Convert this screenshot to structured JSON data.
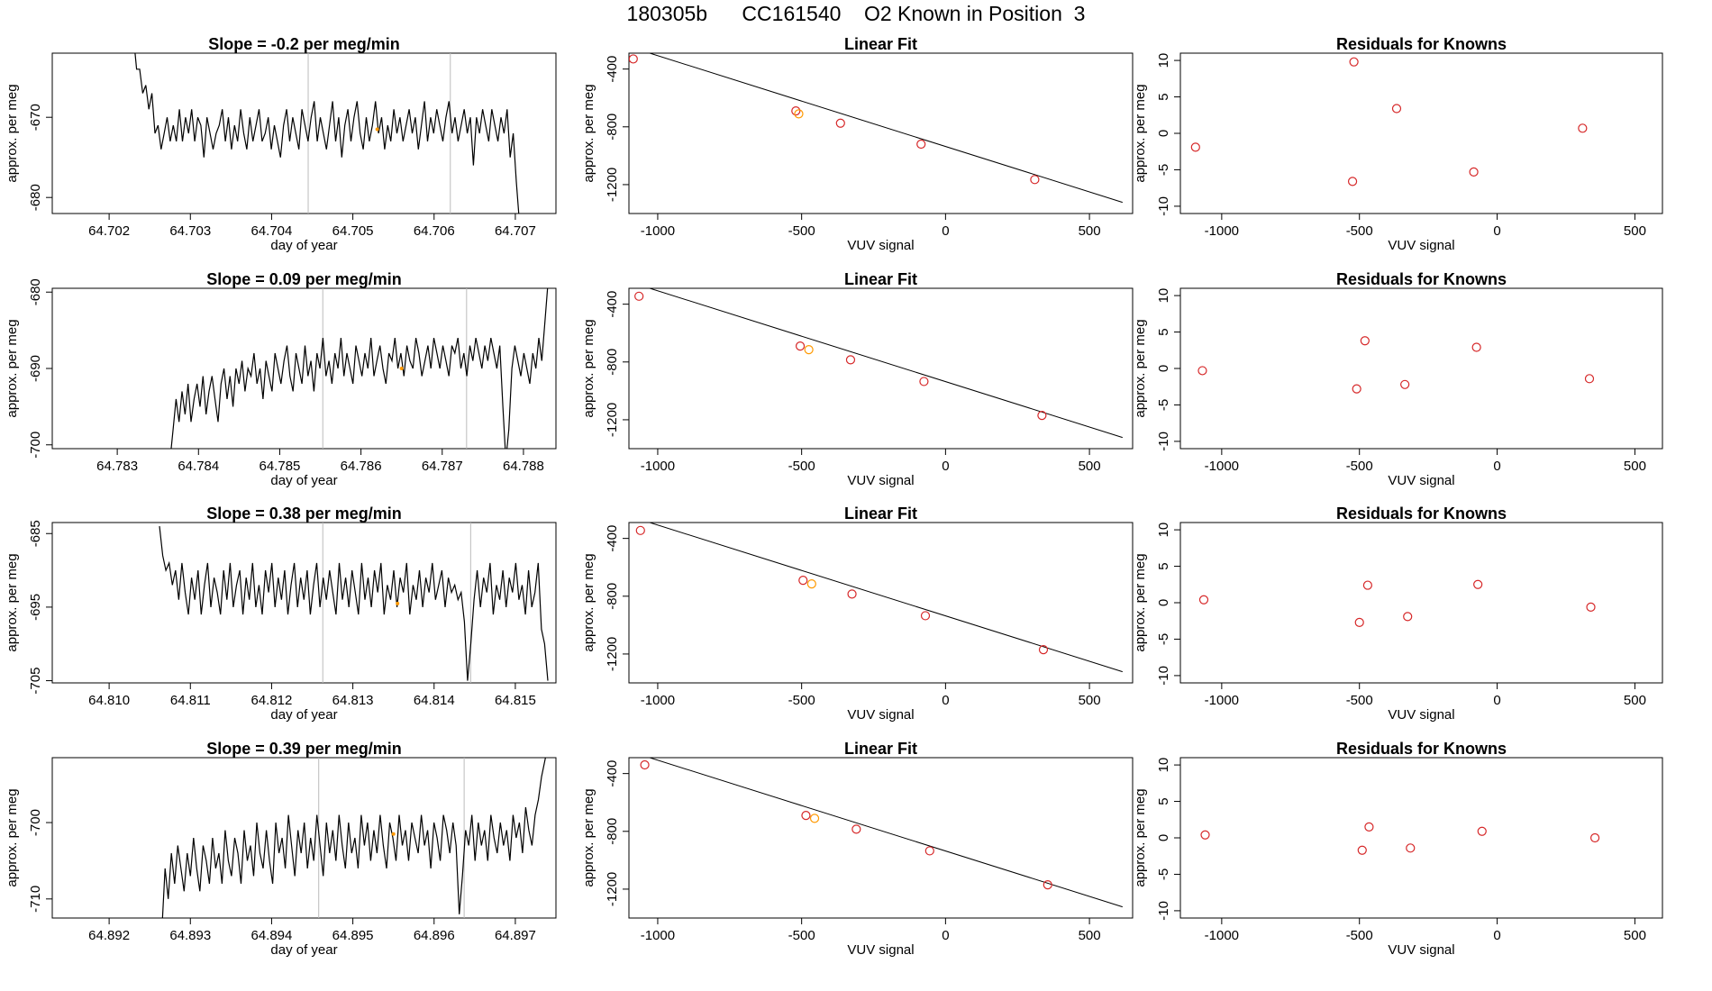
{
  "page_title": "180305b      CC161540    O2 Known in Position  3",
  "colors": {
    "series_line": "#000000",
    "point_red": "#d62728",
    "point_orange": "#ff9900",
    "marker_line": "#bbbbbb",
    "fit_line": "#000000"
  },
  "chart_data": [
    {
      "type": "line",
      "row": 0,
      "title": "Slope =  -0.2  per meg/min",
      "xlabel": "day of year",
      "ylabel": "approx. per meg",
      "xlim": [
        64.7013,
        64.7075
      ],
      "ylim": [
        -682,
        -662
      ],
      "xticks": [
        64.702,
        64.703,
        64.704,
        64.705,
        64.706,
        64.707
      ],
      "yticks": [
        -680,
        -670
      ],
      "vlines": [
        64.70445,
        64.7062
      ],
      "series": {
        "x_start": 64.7023,
        "x_end": 64.70705,
        "y": [
          -660,
          -664,
          -664,
          -667,
          -666,
          -669,
          -667,
          -672,
          -671,
          -674,
          -672,
          -670,
          -673,
          -671,
          -673,
          -669,
          -673,
          -670,
          -672,
          -669,
          -673,
          -670,
          -671,
          -675,
          -670,
          -672,
          -674,
          -672,
          -671,
          -669,
          -673,
          -670,
          -674,
          -671,
          -673,
          -669,
          -672,
          -674,
          -670,
          -673,
          -671,
          -669,
          -673,
          -672,
          -670,
          -674,
          -671,
          -673,
          -675,
          -671,
          -669,
          -673,
          -670,
          -672,
          -674,
          -669,
          -671,
          -673,
          -670,
          -668,
          -673,
          -670,
          -672,
          -674,
          -671,
          -668,
          -673,
          -670,
          -675,
          -671,
          -669,
          -673,
          -670,
          -668,
          -672,
          -674,
          -670,
          -673,
          -671,
          -668,
          -672,
          -670,
          -674,
          -671,
          -673,
          -669,
          -672,
          -670,
          -673,
          -671,
          -669,
          -672,
          -670,
          -674,
          -671,
          -668,
          -673,
          -670,
          -672,
          -669,
          -671,
          -673,
          -670,
          -668,
          -672,
          -670,
          -673,
          -671,
          -669,
          -672,
          -670,
          -676,
          -670,
          -672,
          -669,
          -671,
          -673,
          -669,
          -671,
          -673,
          -670,
          -672,
          -669,
          -675,
          -672,
          -678,
          -683
        ]
      },
      "marker": {
        "x": 64.7053,
        "y": -671.5
      }
    },
    {
      "type": "scatter",
      "row": 0,
      "title": "Linear Fit",
      "xlabel": "VUV signal",
      "ylabel": "approx. per meg",
      "xlim": [
        -1100,
        650
      ],
      "ylim": [
        -1400,
        -290
      ],
      "xticks": [
        -1000,
        -500,
        0,
        500
      ],
      "yticks": [
        -1200,
        -800,
        -400
      ],
      "points": [
        {
          "x": -1085,
          "y": -330
        },
        {
          "x": -520,
          "y": -690
        },
        {
          "x": -510,
          "y": -710
        },
        {
          "x": -365,
          "y": -775
        },
        {
          "x": -85,
          "y": -920
        },
        {
          "x": 310,
          "y": -1165
        }
      ],
      "highlight_index": 2,
      "fit": {
        "slope": -0.6286,
        "intercept": -936
      }
    },
    {
      "type": "scatter",
      "row": 0,
      "title": "Residuals for Knowns",
      "xlabel": "VUV signal",
      "ylabel": "approx. per meg",
      "xlim": [
        -1150,
        600
      ],
      "ylim": [
        -11,
        11
      ],
      "xticks": [
        -1000,
        -500,
        0,
        500
      ],
      "yticks": [
        -10,
        -5,
        0,
        5,
        10
      ],
      "points": [
        {
          "x": -1095,
          "y": -1.9
        },
        {
          "x": -525,
          "y": -6.6
        },
        {
          "x": -520,
          "y": 9.8
        },
        {
          "x": -365,
          "y": 3.4
        },
        {
          "x": -85,
          "y": -5.3
        },
        {
          "x": 310,
          "y": 0.7
        }
      ]
    },
    {
      "type": "line",
      "row": 1,
      "title": "Slope =  0.09  per meg/min",
      "xlabel": "day of year",
      "ylabel": "approx. per meg",
      "xlim": [
        64.7822,
        64.7884
      ],
      "ylim": [
        -700.5,
        -679.5
      ],
      "xticks": [
        64.783,
        64.784,
        64.785,
        64.786,
        64.787,
        64.788
      ],
      "yticks": [
        -700,
        -690,
        -680
      ],
      "vlines": [
        64.78553,
        64.7873
      ],
      "series": {
        "x_start": 64.78365,
        "x_end": 64.7883,
        "y": [
          -702,
          -698,
          -694,
          -697,
          -693,
          -696,
          -692,
          -697,
          -694,
          -692,
          -695,
          -691,
          -696,
          -693,
          -691,
          -694,
          -697,
          -692,
          -690,
          -694,
          -691,
          -695,
          -690,
          -692,
          -689,
          -693,
          -690,
          -691,
          -688,
          -692,
          -690,
          -694,
          -689,
          -691,
          -693,
          -688,
          -690,
          -692,
          -689,
          -687,
          -691,
          -693,
          -688,
          -690,
          -692,
          -687,
          -691,
          -689,
          -693,
          -688,
          -690,
          -686,
          -691,
          -689,
          -692,
          -688,
          -690,
          -686,
          -691,
          -688,
          -690,
          -692,
          -687,
          -689,
          -691,
          -688,
          -690,
          -686,
          -691,
          -689,
          -687,
          -690,
          -692,
          -688,
          -689,
          -686,
          -690,
          -688,
          -691,
          -687,
          -689,
          -690,
          -686,
          -688,
          -691,
          -689,
          -687,
          -690,
          -686,
          -688,
          -690,
          -687,
          -689,
          -691,
          -687,
          -688,
          -686,
          -690,
          -688,
          -691,
          -687,
          -689,
          -686,
          -688,
          -690,
          -687,
          -689,
          -686,
          -688,
          -690,
          -687,
          -695,
          -702,
          -698,
          -690,
          -687,
          -689,
          -691,
          -688,
          -690,
          -692,
          -688,
          -690,
          -686,
          -689,
          -684,
          -679
        ]
      },
      "marker": {
        "x": 64.7865,
        "y": -690
      }
    },
    {
      "type": "scatter",
      "row": 1,
      "title": "Linear Fit",
      "xlabel": "VUV signal",
      "ylabel": "approx. per meg",
      "xlim": [
        -1100,
        650
      ],
      "ylim": [
        -1400,
        -290
      ],
      "xticks": [
        -1000,
        -500,
        0,
        500
      ],
      "yticks": [
        -1200,
        -800,
        -400
      ],
      "points": [
        {
          "x": -1065,
          "y": -345
        },
        {
          "x": -505,
          "y": -690
        },
        {
          "x": -475,
          "y": -715
        },
        {
          "x": -330,
          "y": -785
        },
        {
          "x": -75,
          "y": -935
        },
        {
          "x": 335,
          "y": -1170
        }
      ],
      "highlight_index": 2,
      "fit": {
        "slope": -0.6286,
        "intercept": -936
      }
    },
    {
      "type": "scatter",
      "row": 1,
      "title": "Residuals for Knowns",
      "xlabel": "VUV signal",
      "ylabel": "approx. per meg",
      "xlim": [
        -1150,
        600
      ],
      "ylim": [
        -11,
        11
      ],
      "xticks": [
        -1000,
        -500,
        0,
        500
      ],
      "yticks": [
        -10,
        -5,
        0,
        5,
        10
      ],
      "points": [
        {
          "x": -1070,
          "y": -0.3
        },
        {
          "x": -510,
          "y": -2.8
        },
        {
          "x": -480,
          "y": 3.8
        },
        {
          "x": -335,
          "y": -2.2
        },
        {
          "x": -75,
          "y": 2.9
        },
        {
          "x": 335,
          "y": -1.4
        }
      ]
    },
    {
      "type": "line",
      "row": 2,
      "title": "Slope =  0.38  per meg/min",
      "xlabel": "day of year",
      "ylabel": "approx. per meg",
      "xlim": [
        64.8093,
        64.8155
      ],
      "ylim": [
        -705.3,
        -683.5
      ],
      "xticks": [
        64.81,
        64.811,
        64.812,
        64.813,
        64.814,
        64.815
      ],
      "yticks": [
        -705,
        -695,
        -685
      ],
      "vlines": [
        64.81263,
        64.81445
      ],
      "series": {
        "x_start": 64.81062,
        "x_end": 64.8154,
        "y": [
          -684,
          -688,
          -690,
          -689,
          -692,
          -690,
          -694,
          -689,
          -693,
          -696,
          -691,
          -694,
          -690,
          -696,
          -692,
          -689,
          -695,
          -691,
          -693,
          -696,
          -690,
          -694,
          -689,
          -695,
          -692,
          -690,
          -696,
          -691,
          -694,
          -689,
          -695,
          -692,
          -696,
          -690,
          -693,
          -689,
          -695,
          -691,
          -694,
          -690,
          -696,
          -692,
          -689,
          -695,
          -691,
          -694,
          -690,
          -696,
          -692,
          -689,
          -695,
          -691,
          -694,
          -690,
          -693,
          -696,
          -689,
          -694,
          -691,
          -695,
          -690,
          -693,
          -696,
          -689,
          -694,
          -691,
          -695,
          -690,
          -693,
          -689,
          -696,
          -692,
          -694,
          -690,
          -695,
          -691,
          -693,
          -689,
          -696,
          -692,
          -694,
          -690,
          -695,
          -691,
          -693,
          -689,
          -694,
          -692,
          -690,
          -695,
          -691,
          -693,
          -692,
          -694,
          -693,
          -697,
          -705,
          -700,
          -694,
          -690,
          -695,
          -691,
          -693,
          -689,
          -696,
          -692,
          -694,
          -690,
          -695,
          -691,
          -693,
          -689,
          -694,
          -692,
          -696,
          -690,
          -695,
          -693,
          -689,
          -698,
          -700,
          -705
        ]
      },
      "marker": {
        "x": 64.81355,
        "y": -694.5
      }
    },
    {
      "type": "scatter",
      "row": 2,
      "title": "Linear Fit",
      "xlabel": "VUV signal",
      "ylabel": "approx. per meg",
      "xlim": [
        -1100,
        650
      ],
      "ylim": [
        -1400,
        -290
      ],
      "xticks": [
        -1000,
        -500,
        0,
        500
      ],
      "yticks": [
        -1200,
        -800,
        -400
      ],
      "points": [
        {
          "x": -1060,
          "y": -345
        },
        {
          "x": -495,
          "y": -690
        },
        {
          "x": -465,
          "y": -715
        },
        {
          "x": -325,
          "y": -785
        },
        {
          "x": -70,
          "y": -935
        },
        {
          "x": 340,
          "y": -1170
        }
      ],
      "highlight_index": 2,
      "fit": {
        "slope": -0.6286,
        "intercept": -936
      }
    },
    {
      "type": "scatter",
      "row": 2,
      "title": "Residuals for Knowns",
      "xlabel": "VUV signal",
      "ylabel": "approx. per meg",
      "xlim": [
        -1150,
        600
      ],
      "ylim": [
        -11,
        11
      ],
      "xticks": [
        -1000,
        -500,
        0,
        500
      ],
      "yticks": [
        -10,
        -5,
        0,
        5,
        10
      ],
      "points": [
        {
          "x": -1065,
          "y": 0.4
        },
        {
          "x": -500,
          "y": -2.7
        },
        {
          "x": -470,
          "y": 2.4
        },
        {
          "x": -325,
          "y": -1.9
        },
        {
          "x": -70,
          "y": 2.5
        },
        {
          "x": 340,
          "y": -0.6
        }
      ]
    },
    {
      "type": "line",
      "row": 3,
      "title": "Slope =  0.39  per meg/min",
      "xlabel": "day of year",
      "ylabel": "approx. per meg",
      "xlim": [
        64.8913,
        64.8975
      ],
      "ylim": [
        -712.5,
        -691.5
      ],
      "xticks": [
        64.892,
        64.893,
        64.894,
        64.895,
        64.896,
        64.897
      ],
      "yticks": [
        -710,
        -700
      ],
      "vlines": [
        64.89458,
        64.89637
      ],
      "series": {
        "x_start": 64.89265,
        "x_end": 64.8974,
        "y": [
          -714,
          -706,
          -710,
          -704,
          -708,
          -703,
          -706,
          -709,
          -704,
          -707,
          -702,
          -706,
          -709,
          -703,
          -705,
          -708,
          -702,
          -706,
          -704,
          -708,
          -701,
          -705,
          -707,
          -702,
          -704,
          -708,
          -701,
          -705,
          -703,
          -707,
          -700,
          -704,
          -706,
          -701,
          -705,
          -708,
          -700,
          -704,
          -702,
          -706,
          -699,
          -703,
          -707,
          -701,
          -704,
          -700,
          -706,
          -702,
          -705,
          -699,
          -703,
          -707,
          -700,
          -704,
          -701,
          -705,
          -699,
          -703,
          -706,
          -700,
          -704,
          -702,
          -706,
          -699,
          -703,
          -700,
          -705,
          -701,
          -704,
          -699,
          -703,
          -706,
          -700,
          -702,
          -705,
          -699,
          -703,
          -701,
          -705,
          -700,
          -702,
          -704,
          -699,
          -703,
          -701,
          -706,
          -700,
          -702,
          -705,
          -699,
          -701,
          -704,
          -700,
          -703,
          -712,
          -707,
          -701,
          -703,
          -699,
          -705,
          -700,
          -703,
          -701,
          -705,
          -699,
          -702,
          -704,
          -700,
          -703,
          -701,
          -705,
          -699,
          -702,
          -700,
          -704,
          -698,
          -701,
          -703,
          -699,
          -697,
          -694,
          -692,
          -690
        ]
      },
      "marker": {
        "x": 64.8955,
        "y": -701.5
      }
    },
    {
      "type": "scatter",
      "row": 3,
      "title": "Linear Fit",
      "xlabel": "VUV signal",
      "ylabel": "approx. per meg",
      "xlim": [
        -1100,
        650
      ],
      "ylim": [
        -1400,
        -290
      ],
      "xticks": [
        -1000,
        -500,
        0,
        500
      ],
      "yticks": [
        -1200,
        -800,
        -400
      ],
      "points": [
        {
          "x": -1045,
          "y": -340
        },
        {
          "x": -485,
          "y": -690
        },
        {
          "x": -455,
          "y": -710
        },
        {
          "x": -310,
          "y": -785
        },
        {
          "x": -55,
          "y": -935
        },
        {
          "x": 355,
          "y": -1170
        }
      ],
      "highlight_index": 2,
      "fit": {
        "slope": -0.6286,
        "intercept": -936
      }
    },
    {
      "type": "scatter",
      "row": 3,
      "title": "Residuals for Knowns",
      "xlabel": "VUV signal",
      "ylabel": "approx. per meg",
      "xlim": [
        -1150,
        600
      ],
      "ylim": [
        -11,
        11
      ],
      "xticks": [
        -1000,
        -500,
        0,
        500
      ],
      "yticks": [
        -10,
        -5,
        0,
        5,
        10
      ],
      "points": [
        {
          "x": -1060,
          "y": 0.4
        },
        {
          "x": -490,
          "y": -1.7
        },
        {
          "x": -465,
          "y": 1.5
        },
        {
          "x": -315,
          "y": -1.4
        },
        {
          "x": -55,
          "y": 0.9
        },
        {
          "x": 355,
          "y": 0.0
        }
      ]
    }
  ]
}
